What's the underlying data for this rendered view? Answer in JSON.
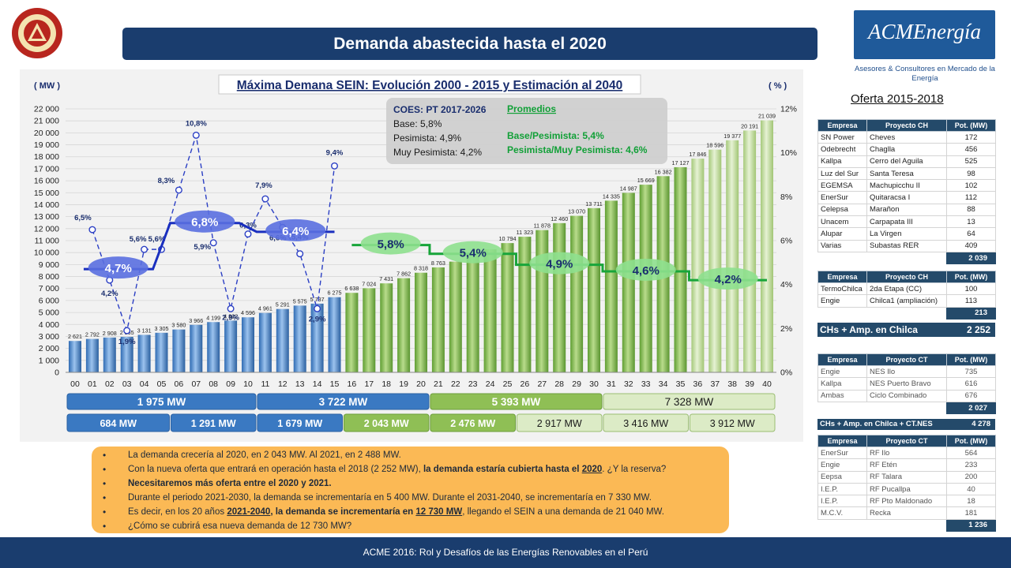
{
  "header": {
    "title": "Demanda abastecida hasta el 2020"
  },
  "brand": {
    "name": "ACMEnergía",
    "subtitle": "Asesores & Consultores en Mercado de la Energía"
  },
  "colors": {
    "navy": "#1a3d6e",
    "blue_bar": "#3f7fc4",
    "green_bar": "#7fba4a",
    "light_green_bar": "#c8dfa2",
    "line_blue": "#1f3fbf",
    "line_green": "#16a43a",
    "orange": "#fbb955"
  },
  "chart_data": {
    "type": "bar",
    "title": "Máxima Demana SEIN: Evolución 2000 - 2015 y Estimación al 2040",
    "left_unit": "( MW )",
    "right_unit": "( % )",
    "categories": [
      "00",
      "01",
      "02",
      "03",
      "04",
      "05",
      "06",
      "07",
      "08",
      "09",
      "10",
      "11",
      "12",
      "13",
      "14",
      "15",
      "16",
      "17",
      "18",
      "19",
      "20",
      "21",
      "22",
      "23",
      "24",
      "25",
      "26",
      "27",
      "28",
      "29",
      "30",
      "31",
      "32",
      "33",
      "34",
      "35",
      "36",
      "37",
      "38",
      "39",
      "40"
    ],
    "values": [
      2621,
      2792,
      2908,
      2965,
      3131,
      3305,
      3580,
      3966,
      4199,
      4322,
      4596,
      4961,
      5291,
      5575,
      5737,
      6275,
      6638,
      7024,
      7431,
      7862,
      8318,
      8763,
      9247,
      9759,
      10275,
      10794,
      11323,
      11878,
      12460,
      13070,
      13711,
      14335,
      14987,
      15669,
      16382,
      17127,
      17846,
      18596,
      19377,
      20191,
      21039
    ],
    "value_labels": [
      "2 621",
      "2 792",
      "2 908",
      "2 965",
      "3 131",
      "3 305",
      "3 580",
      "3 966",
      "4 199",
      "4 322",
      "4 596",
      "4 961",
      "5 291",
      "5 575",
      "5 737",
      "6 275",
      "6 638",
      "7 024",
      "7 431",
      "7 862",
      "8 318",
      "8 763",
      "",
      "",
      "",
      "10 794",
      "11 323",
      "11 878",
      "12 460",
      "13 070",
      "13 711",
      "14 335",
      "14 987",
      "15 669",
      "16 382",
      "17 127",
      "17 846",
      "18 596",
      "19 377",
      "20 191",
      "21 039"
    ],
    "ylim": [
      0,
      22000
    ],
    "y_ticks": [
      "0",
      "1 000",
      "2 000",
      "3 000",
      "4 000",
      "5 000",
      "6 000",
      "7 000",
      "8 000",
      "9 000",
      "10 000",
      "11 000",
      "12 000",
      "13 000",
      "14 000",
      "15 000",
      "16 000",
      "17 000",
      "18 000",
      "19 000",
      "20 000",
      "21 000",
      "22 000"
    ],
    "y2lim": [
      0,
      12
    ],
    "y2_ticks": [
      "0%",
      "2%",
      "4%",
      "6%",
      "8%",
      "10%",
      "12%"
    ],
    "growth_series": {
      "x": [
        "01",
        "02",
        "03",
        "04",
        "05",
        "06",
        "07",
        "08",
        "09",
        "10",
        "11",
        "12",
        "13",
        "14",
        "15"
      ],
      "values": [
        6.5,
        4.2,
        1.9,
        5.6,
        5.6,
        8.3,
        10.8,
        5.9,
        2.9,
        6.3,
        7.9,
        6.6,
        5.4,
        2.9,
        9.4
      ],
      "labels": [
        "6,5%",
        "4,2%",
        "1,9%",
        "5,6%",
        "5,6%",
        "8,3%",
        "10,8%",
        "5,9%",
        "2,9%",
        "6,3%",
        "7,9%",
        "6,6%",
        "5,4%",
        "2,9%",
        "9,4%"
      ]
    },
    "average_segments": [
      {
        "from": 0.5,
        "to": 4.5,
        "value": 4.7,
        "label": "4,7%",
        "color": "blue"
      },
      {
        "from": 5.5,
        "to": 9.5,
        "value": 6.8,
        "label": "6,8%",
        "color": "blue"
      },
      {
        "from": 10.5,
        "to": 15,
        "value": 6.4,
        "label": "6,4%",
        "color": "blue"
      },
      {
        "from": 16,
        "to": 20.5,
        "value": 5.8,
        "label": "5,8%",
        "color": "green"
      },
      {
        "from": 20.5,
        "to": 25.5,
        "value": 5.4,
        "label": "5,4%",
        "color": "green"
      },
      {
        "from": 25.5,
        "to": 30.5,
        "value": 4.9,
        "label": "4,9%",
        "color": "green"
      },
      {
        "from": 30.5,
        "to": 35.5,
        "value": 4.6,
        "label": "4,6%",
        "color": "green"
      },
      {
        "from": 35.5,
        "to": 40,
        "value": 4.2,
        "label": "4,2%",
        "color": "green"
      }
    ],
    "info_box": {
      "title": "COES: PT 2017-2026",
      "lines": [
        "Base: 5,8%",
        "Pesimista: 4,9%",
        "Muy Pesimista: 4,2%"
      ],
      "promedios_title": "Promedios",
      "promedios": [
        "Base/Pesimista: 5,4%",
        "Pesimista/Muy Pesimista: 4,6%"
      ]
    },
    "range_row1": [
      {
        "from": 0,
        "to": 10,
        "label": "1 975 MW",
        "style": "blue"
      },
      {
        "from": 11,
        "to": 20,
        "label": "3 722 MW",
        "style": "blue"
      },
      {
        "from": 21,
        "to": 30,
        "label": "5 393 MW",
        "style": "green"
      },
      {
        "from": 31,
        "to": 40,
        "label": "7 328 MW",
        "style": "light"
      }
    ],
    "range_row2": [
      {
        "from": 0,
        "to": 5,
        "label": "684 MW",
        "style": "blue"
      },
      {
        "from": 6,
        "to": 10,
        "label": "1 291 MW",
        "style": "blue"
      },
      {
        "from": 11,
        "to": 15,
        "label": "1 679 MW",
        "style": "blue"
      },
      {
        "from": 16,
        "to": 20,
        "label": "2 043 MW",
        "style": "green"
      },
      {
        "from": 21,
        "to": 25,
        "label": "2 476 MW",
        "style": "green"
      },
      {
        "from": 26,
        "to": 30,
        "label": "2 917 MW",
        "style": "light"
      },
      {
        "from": 31,
        "to": 35,
        "label": "3 416 MW",
        "style": "light"
      },
      {
        "from": 36,
        "to": 40,
        "label": "3 912 MW",
        "style": "light"
      }
    ]
  },
  "bullets": [
    {
      "parts": [
        {
          "t": "La demanda crecería al 2020,  en 2 043 MW. Al 2021,  en 2 488 MW.",
          "s": ""
        }
      ]
    },
    {
      "parts": [
        {
          "t": "Con la nueva oferta que entrará en operación hasta el 2018 (2 252 MW), ",
          "s": ""
        },
        {
          "t": "la demanda estaría cubierta hasta el ",
          "s": "b"
        },
        {
          "t": "2020",
          "s": "u"
        },
        {
          "t": ". ¿Y la reserva?",
          "s": ""
        }
      ]
    },
    {
      "parts": [
        {
          "t": "Necesitaremos más oferta entre el 2020 y 2021.",
          "s": "b"
        }
      ]
    },
    {
      "parts": [
        {
          "t": "Durante el periodo 2021-2030,  la demanda se incrementaría en 5 400 MW. Durante el 2031-2040, se incrementaría en 7 330 MW.",
          "s": ""
        }
      ]
    },
    {
      "parts": [
        {
          "t": "Es decir, en los 20 años ",
          "s": ""
        },
        {
          "t": "2021-2040",
          "s": "u"
        },
        {
          "t": ", la demanda se incrementaría en ",
          "s": "b"
        },
        {
          "t": "12 730 MW",
          "s": "u"
        },
        {
          "t": ", llegando el SEIN a una demanda de 21 040 MW.",
          "s": ""
        }
      ]
    },
    {
      "parts": [
        {
          "t": "¿Cómo se cubrirá esa nueva demanda de 12 730 MW?",
          "s": ""
        }
      ]
    }
  ],
  "footer": {
    "text": "ACME 2016:  Rol y Desafíos de las Energías Renovables en el Perú"
  },
  "oferta": {
    "title": "Oferta 2015-2018",
    "table1": {
      "headers": [
        "Empresa",
        "Proyecto CH",
        "Pot. (MW)"
      ],
      "rows": [
        [
          "SN Power",
          "Cheves",
          "172"
        ],
        [
          "Odebrecht",
          "Chaglla",
          "456"
        ],
        [
          "Kallpa",
          "Cerro del Aguila",
          "525"
        ],
        [
          "Luz del Sur",
          "Santa Teresa",
          "98"
        ],
        [
          "EGEMSA",
          "Machupicchu II",
          "102"
        ],
        [
          "EnerSur",
          "Quitaracsa I",
          "112"
        ],
        [
          "Celepsa",
          "Marañon",
          "88"
        ],
        [
          "Unacem",
          "Carpapata III",
          "13"
        ],
        [
          "Alupar",
          "La Virgen",
          "64"
        ],
        [
          "Varias",
          "Subastas RER",
          "409"
        ]
      ],
      "total": "2 039"
    },
    "table2": {
      "headers": [
        "Empresa",
        "Proyecto CH",
        "Pot. (MW)"
      ],
      "rows": [
        [
          "TermoChilca",
          "2da Etapa (CC)",
          "100"
        ],
        [
          "Engie",
          "Chilca1 (ampliación)",
          "113"
        ]
      ],
      "total": "213"
    },
    "sum1": {
      "label": "CHs + Amp. en Chilca",
      "value": "2 252"
    },
    "table3": {
      "headers": [
        "Empresa",
        "Proyecto CT",
        "Pot. (MW)"
      ],
      "rows": [
        [
          "Engie",
          "NES Ilo",
          "735"
        ],
        [
          "Kallpa",
          "NES Puerto Bravo",
          "616"
        ],
        [
          "Ambas",
          "Ciclo Combinado",
          "676"
        ]
      ],
      "total": "2 027"
    },
    "sum2": {
      "label": "CHs + Amp. en Chilca + CT.NES",
      "value": "4 278"
    },
    "table4": {
      "headers": [
        "Empresa",
        "Proyecto CT",
        "Pot. (MW)"
      ],
      "rows": [
        [
          "EnerSur",
          "RF Ilo",
          "564"
        ],
        [
          "Engie",
          "RF Etén",
          "233"
        ],
        [
          "Eepsa",
          "RF Talara",
          "200"
        ],
        [
          "I.E.P.",
          "RF Pucallpa",
          "40"
        ],
        [
          "I.E.P.",
          "RF Pto Maldonado",
          "18"
        ],
        [
          "M.C.V.",
          "Recka",
          "181"
        ]
      ],
      "total": "1 236"
    }
  }
}
